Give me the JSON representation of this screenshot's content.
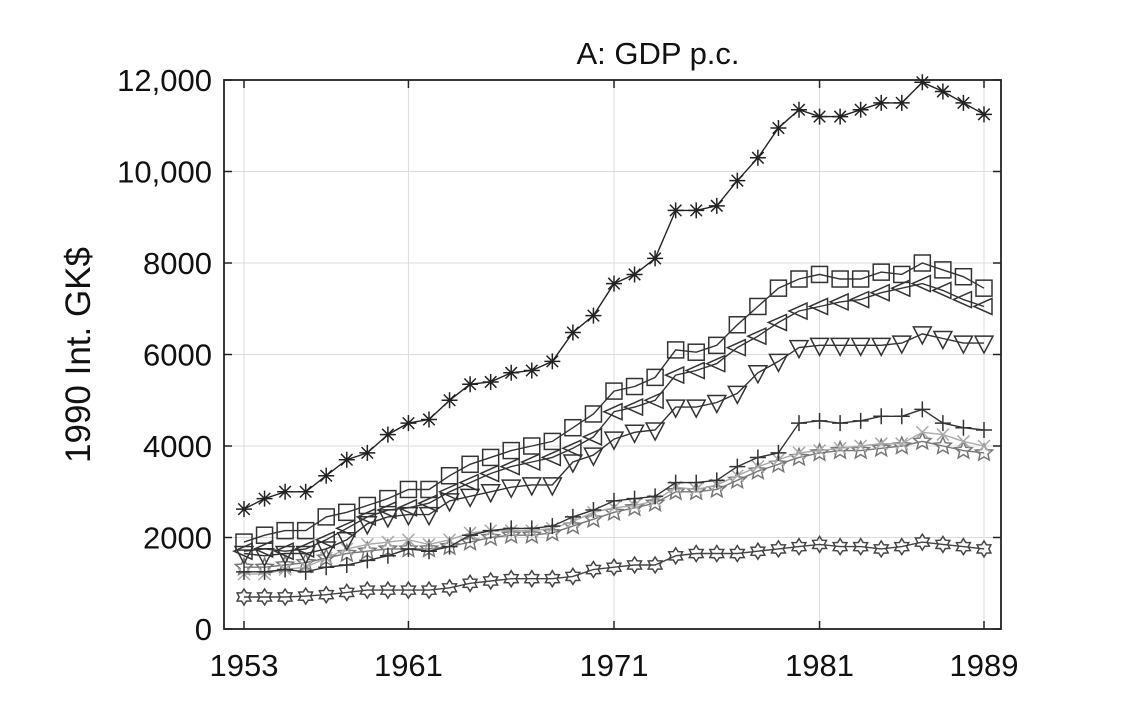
{
  "chart_data": {
    "type": "line",
    "title": "A: GDP p.c.",
    "xlabel": "",
    "ylabel": "1990 Int. GK$",
    "xlim": [
      1953,
      1989
    ],
    "ylim": [
      0,
      12000
    ],
    "xticks": [
      1953,
      1961,
      1971,
      1981,
      1989
    ],
    "xtick_labels": [
      "1953",
      "1961",
      "1971",
      "1981",
      "1989"
    ],
    "yticks": [
      0,
      2000,
      4000,
      6000,
      8000,
      10000,
      12000
    ],
    "ytick_labels": [
      "0",
      "2000",
      "4000",
      "6000",
      "8000",
      "10,000",
      "12,000"
    ],
    "grid": true,
    "x": [
      1953,
      1954,
      1955,
      1956,
      1957,
      1958,
      1959,
      1960,
      1961,
      1962,
      1963,
      1964,
      1965,
      1966,
      1967,
      1968,
      1969,
      1970,
      1971,
      1972,
      1973,
      1974,
      1975,
      1976,
      1977,
      1978,
      1979,
      1980,
      1981,
      1982,
      1983,
      1984,
      1985,
      1986,
      1987,
      1988,
      1989
    ],
    "series": [
      {
        "marker": "asterisk",
        "color": "#222222",
        "values": [
          2620,
          2850,
          3000,
          3000,
          3350,
          3700,
          3850,
          4250,
          4500,
          4580,
          5000,
          5350,
          5400,
          5600,
          5650,
          5850,
          6480,
          6850,
          7550,
          7750,
          8100,
          9150,
          9150,
          9250,
          9800,
          10300,
          10950,
          11350,
          11200,
          11200,
          11350,
          11500,
          11500,
          11950,
          11750,
          11500,
          11250
        ]
      },
      {
        "marker": "square",
        "color": "#333333",
        "values": [
          1900,
          2050,
          2150,
          2150,
          2450,
          2550,
          2700,
          2850,
          3050,
          3050,
          3350,
          3600,
          3750,
          3900,
          4000,
          4100,
          4400,
          4700,
          5200,
          5300,
          5500,
          6100,
          6050,
          6200,
          6650,
          7050,
          7450,
          7650,
          7750,
          7650,
          7650,
          7800,
          7750,
          8000,
          7850,
          7700,
          7450
        ]
      },
      {
        "marker": "left-triangle",
        "color": "#333333",
        "values": [
          1700,
          1750,
          1700,
          1750,
          1950,
          2200,
          2450,
          2600,
          2650,
          2750,
          3000,
          3200,
          3400,
          3550,
          3650,
          3750,
          3950,
          4200,
          4750,
          4850,
          5000,
          5550,
          5650,
          5800,
          6150,
          6400,
          6700,
          6950,
          7050,
          7150,
          7200,
          7350,
          7450,
          7550,
          7400,
          7200,
          7050
        ]
      },
      {
        "marker": "down-triangle",
        "color": "#333333",
        "values": [
          1650,
          1600,
          1650,
          1650,
          1750,
          1950,
          2300,
          2450,
          2500,
          2500,
          2800,
          2900,
          3000,
          3100,
          3150,
          3150,
          3650,
          3800,
          4150,
          4300,
          4350,
          4850,
          4850,
          4950,
          5150,
          5600,
          5850,
          6150,
          6200,
          6200,
          6200,
          6200,
          6250,
          6450,
          6350,
          6250,
          6250
        ]
      },
      {
        "marker": "plus",
        "color": "#333333",
        "values": [
          1250,
          1250,
          1300,
          1250,
          1350,
          1400,
          1500,
          1600,
          1750,
          1700,
          1800,
          2050,
          2150,
          2200,
          2200,
          2250,
          2450,
          2600,
          2800,
          2850,
          2900,
          3200,
          3200,
          3250,
          3550,
          3750,
          3850,
          4500,
          4550,
          4500,
          4550,
          4650,
          4650,
          4800,
          4500,
          4400,
          4350
        ]
      },
      {
        "marker": "x",
        "color": "#aaaaaa",
        "values": [
          1200,
          1200,
          1300,
          1350,
          1550,
          1750,
          1850,
          1900,
          1950,
          1850,
          1950,
          2100,
          2150,
          2150,
          2150,
          2200,
          2350,
          2550,
          2650,
          2700,
          2800,
          3100,
          3050,
          3150,
          3350,
          3550,
          3700,
          3850,
          3900,
          3950,
          4000,
          4050,
          4050,
          4300,
          4250,
          4100,
          4000
        ]
      },
      {
        "marker": "pentagram",
        "color": "#777777",
        "values": [
          1350,
          1350,
          1400,
          1450,
          1550,
          1650,
          1700,
          1750,
          1750,
          1750,
          1800,
          1900,
          2000,
          2050,
          2050,
          2100,
          2250,
          2400,
          2550,
          2650,
          2750,
          3000,
          3000,
          3050,
          3250,
          3450,
          3600,
          3750,
          3850,
          3900,
          3900,
          3950,
          4000,
          4100,
          4000,
          3900,
          3850
        ]
      },
      {
        "marker": "hexagram",
        "color": "#444444",
        "values": [
          700,
          700,
          700,
          720,
          750,
          800,
          850,
          850,
          850,
          850,
          900,
          1000,
          1050,
          1100,
          1100,
          1100,
          1150,
          1300,
          1350,
          1400,
          1400,
          1600,
          1650,
          1650,
          1650,
          1700,
          1750,
          1800,
          1850,
          1800,
          1800,
          1750,
          1800,
          1900,
          1850,
          1800,
          1750
        ]
      }
    ]
  }
}
